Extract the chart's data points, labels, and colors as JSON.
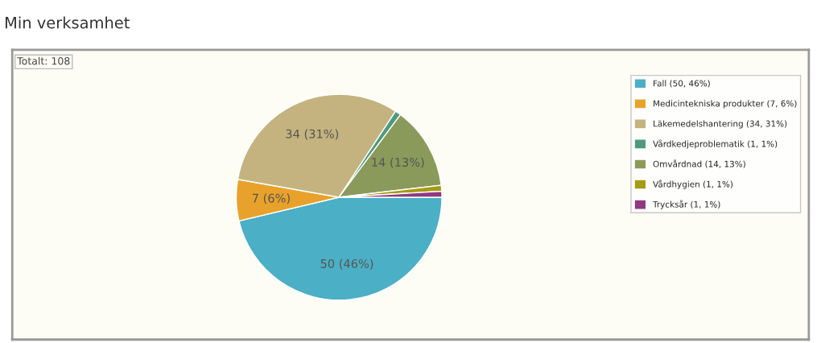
{
  "chart_data": {
    "type": "pie",
    "title": "Min verksamhet",
    "categories": [
      "Fall (50, 46%)",
      "Medicintekniska produkter (7, 6%)",
      "Läkemedelshantering (34, 31%)",
      "Vårdkedjeproblematik (1, 1%)",
      "Omvårdnad (14, 13%)",
      "Vårdhygien (1, 1%)",
      "Trycksår (1, 1%)"
    ],
    "values": [
      50,
      7,
      34,
      1,
      14,
      1,
      1
    ],
    "colors": [
      "#4bafc6",
      "#e8a22c",
      "#c4b37e",
      "#4f9a7f",
      "#8a9a5b",
      "#a59b14",
      "#8e3a80"
    ],
    "value_labels": [
      "50 (46%)",
      "7 (6%)",
      "34 (31%)",
      null,
      "14 (13%)",
      null,
      null
    ],
    "annotations": [
      "Totalt: 108"
    ],
    "legend": "right"
  }
}
